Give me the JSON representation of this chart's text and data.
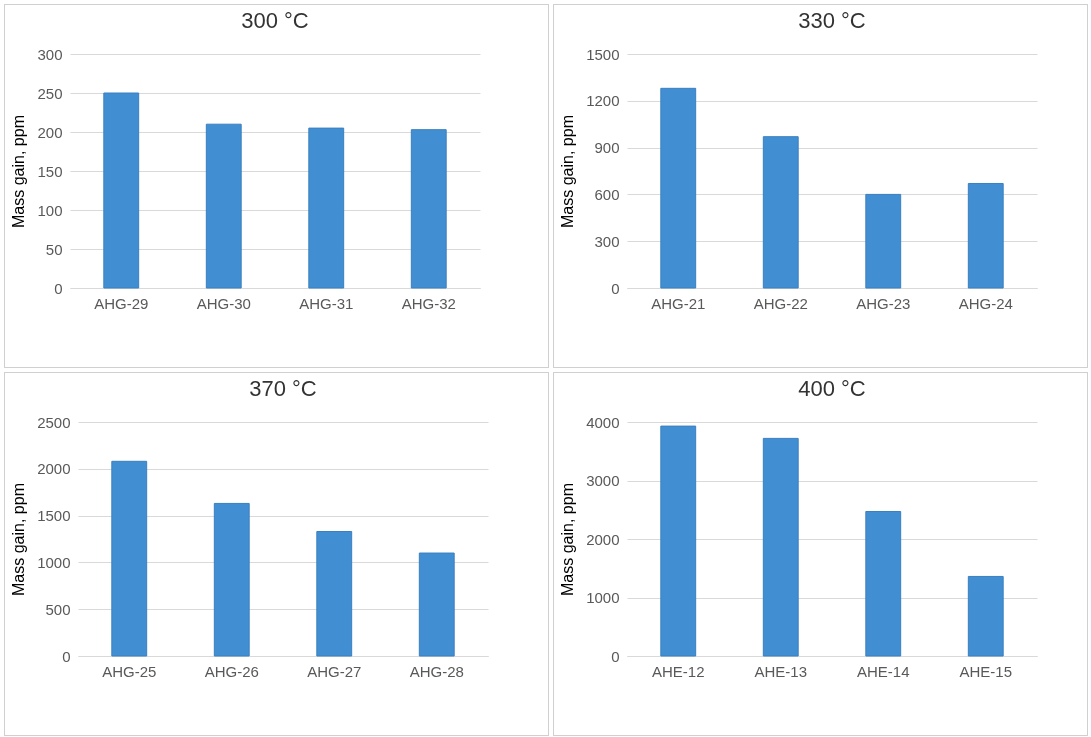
{
  "chart_data": [
    {
      "type": "bar",
      "title": "300 °C",
      "ylabel": "Mass gain, ppm",
      "categories": [
        "AHG-29",
        "AHG-30",
        "AHG-31",
        "AHG-32"
      ],
      "values": [
        250,
        210,
        205,
        203
      ],
      "color": "#418fd2",
      "ylim": [
        0,
        300
      ],
      "yticks": [
        0,
        50,
        100,
        150,
        200,
        250,
        300
      ],
      "grid": "y"
    },
    {
      "type": "bar",
      "title": "330 °C",
      "ylabel": "Mass gain, ppm",
      "categories": [
        "AHG-21",
        "AHG-22",
        "AHG-23",
        "AHG-24"
      ],
      "values": [
        1280,
        970,
        600,
        670
      ],
      "color": "#418fd2",
      "ylim": [
        0,
        1500
      ],
      "yticks": [
        0,
        300,
        600,
        900,
        1200,
        1500
      ],
      "grid": "y"
    },
    {
      "type": "bar",
      "title": "370 °C",
      "ylabel": "Mass gain, ppm",
      "categories": [
        "AHG-25",
        "AHG-26",
        "AHG-27",
        "AHG-28"
      ],
      "values": [
        2080,
        1630,
        1330,
        1100
      ],
      "color": "#418fd2",
      "ylim": [
        0,
        2500
      ],
      "yticks": [
        0,
        500,
        1000,
        1500,
        2000,
        2500
      ],
      "grid": "y"
    },
    {
      "type": "bar",
      "title": "400 °C",
      "ylabel": "Mass gain, ppm",
      "categories": [
        "AHE-12",
        "AHE-13",
        "AHE-14",
        "AHE-15"
      ],
      "values": [
        3930,
        3720,
        2470,
        1360
      ],
      "color": "#418fd2",
      "ylim": [
        0,
        4000
      ],
      "yticks": [
        0,
        1000,
        2000,
        3000,
        4000
      ],
      "grid": "y"
    }
  ]
}
